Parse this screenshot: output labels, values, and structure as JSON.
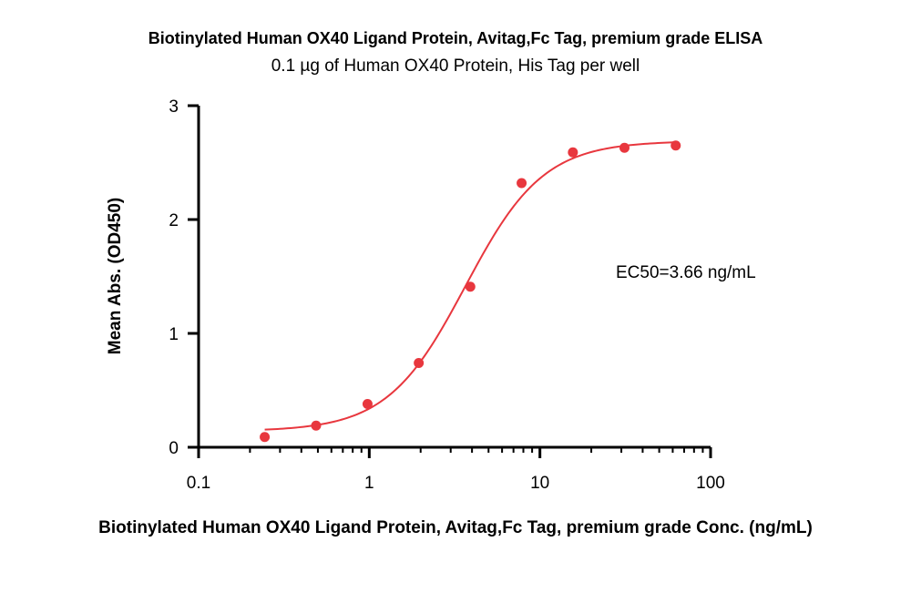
{
  "chart_data": {
    "type": "scatter",
    "title": "Biotinylated Human OX40 Ligand Protein, Avitag,Fc Tag, premium grade ELISA",
    "subtitle": "0.1 µg of Human OX40 Protein, His Tag per well",
    "xlabel": "Biotinylated Human OX40 Ligand Protein, Avitag,Fc Tag, premium grade Conc. (ng/mL)",
    "ylabel": "Mean Abs. (OD450)",
    "x_scale": "log",
    "xlim": [
      0.1,
      100
    ],
    "ylim": [
      0,
      3
    ],
    "x_ticks": [
      "0.1",
      "1",
      "10",
      "100"
    ],
    "y_ticks": [
      "0",
      "1",
      "2",
      "3"
    ],
    "grid": false,
    "series": [
      {
        "x": [
          0.244,
          0.488,
          0.977,
          1.95,
          3.91,
          7.81,
          15.6,
          31.3,
          62.5
        ],
        "y": [
          0.09,
          0.19,
          0.38,
          0.74,
          1.41,
          2.32,
          2.59,
          2.63,
          2.65
        ],
        "color": "#e8373e",
        "fit": {
          "model": "4PL",
          "bottom": 0.14,
          "top": 2.69,
          "ec50": 3.66,
          "hill": 1.9,
          "x_range": [
            0.244,
            62.5
          ]
        }
      }
    ],
    "annotations": [
      "EC50=3.66 ng/mL"
    ]
  }
}
